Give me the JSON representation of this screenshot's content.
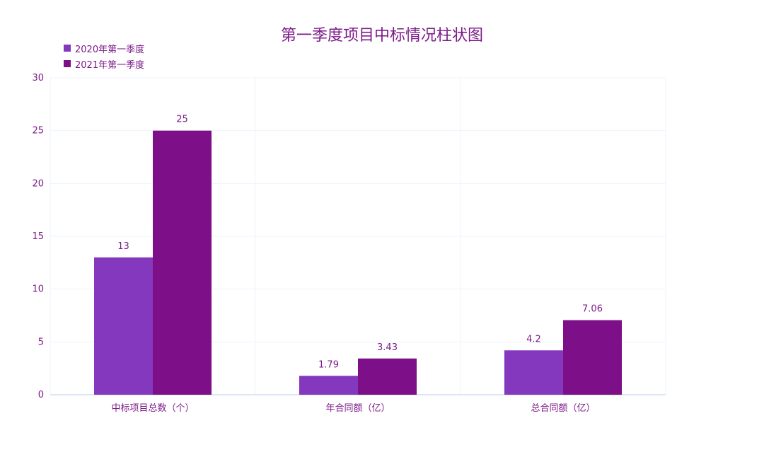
{
  "chart_data": {
    "type": "bar",
    "title": "第一季度项目中标情况柱状图",
    "categories": [
      "中标项目总数（个）",
      "年合同额（亿）",
      "总合同额（亿）"
    ],
    "series": [
      {
        "name": "2020年第一季度",
        "values": [
          13,
          1.79,
          4.2
        ],
        "color": "#8338bd"
      },
      {
        "name": "2021年第一季度",
        "values": [
          25,
          3.43,
          7.06
        ],
        "color": "#7d0f88"
      }
    ],
    "xlabel": "",
    "ylabel": "",
    "ylim": [
      0,
      30
    ],
    "yticks": [
      0,
      5,
      10,
      15,
      20,
      25,
      30
    ],
    "grid": true,
    "legend_position": "top-left",
    "text_color": "#7d1a8a",
    "grid_color": "#eef3fb"
  }
}
